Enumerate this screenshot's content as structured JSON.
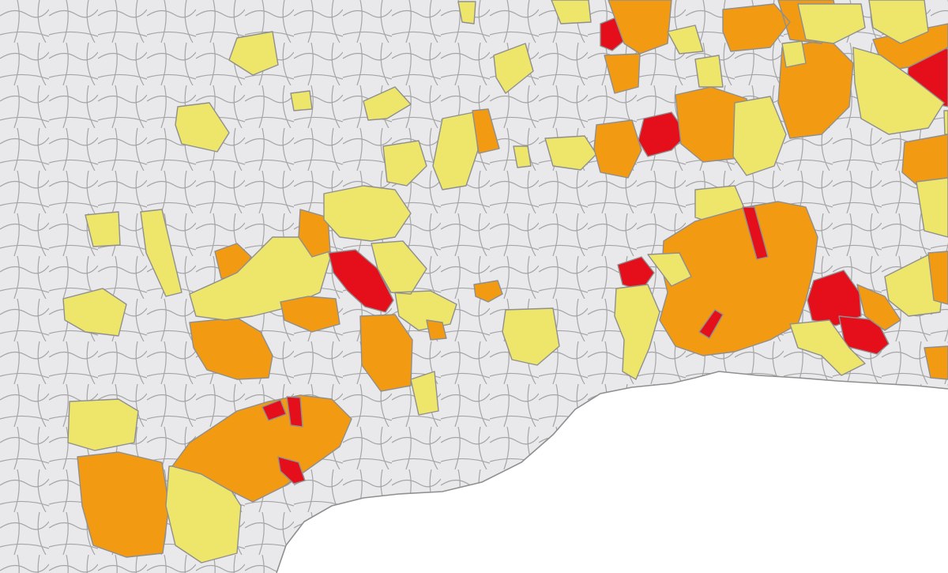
{
  "map": {
    "legend_items": [],
    "colors": {
      "no_data": "#e9e8ea",
      "low": "#ede66a",
      "medium": "#f29a12",
      "high": "#e50f1c",
      "sea": "#ffffff",
      "border": "#8f8f8f"
    },
    "regions": [
      {
        "id": "far-west-large",
        "level": "medium"
      },
      {
        "id": "west-south-low-a",
        "level": "low"
      },
      {
        "id": "west-south-low-b",
        "level": "low"
      },
      {
        "id": "west-coast-medium-band",
        "level": "medium"
      },
      {
        "id": "west-coast-high-a",
        "level": "high"
      },
      {
        "id": "west-coast-high-b",
        "level": "high"
      },
      {
        "id": "west-coast-high-c",
        "level": "high"
      },
      {
        "id": "west-mid-medium-a",
        "level": "medium"
      },
      {
        "id": "west-mid-medium-b",
        "level": "medium"
      },
      {
        "id": "west-mid-low-cluster",
        "level": "low"
      },
      {
        "id": "center-high",
        "level": "high"
      },
      {
        "id": "center-medium-south",
        "level": "medium"
      },
      {
        "id": "center-low-east",
        "level": "low"
      },
      {
        "id": "center-east-low-lone",
        "level": "low"
      },
      {
        "id": "center-small-orange",
        "level": "medium"
      },
      {
        "id": "north-low-a",
        "level": "low"
      },
      {
        "id": "north-low-b",
        "level": "low"
      },
      {
        "id": "north-low-cluster",
        "level": "low"
      },
      {
        "id": "north-orange-small",
        "level": "medium"
      },
      {
        "id": "northeast-high-a",
        "level": "high"
      },
      {
        "id": "northeast-high-b",
        "level": "high"
      },
      {
        "id": "northeast-high-c",
        "level": "high"
      },
      {
        "id": "northeast-medium-band",
        "level": "medium"
      },
      {
        "id": "northeast-low-band",
        "level": "low"
      },
      {
        "id": "east-medium-large",
        "level": "medium"
      },
      {
        "id": "east-high-a",
        "level": "high"
      },
      {
        "id": "east-high-b",
        "level": "high"
      },
      {
        "id": "east-high-c",
        "level": "high"
      },
      {
        "id": "east-high-d",
        "level": "high"
      },
      {
        "id": "east-low-fringe",
        "level": "low"
      },
      {
        "id": "far-east-medium",
        "level": "medium"
      },
      {
        "id": "far-east-low",
        "level": "low"
      }
    ]
  }
}
